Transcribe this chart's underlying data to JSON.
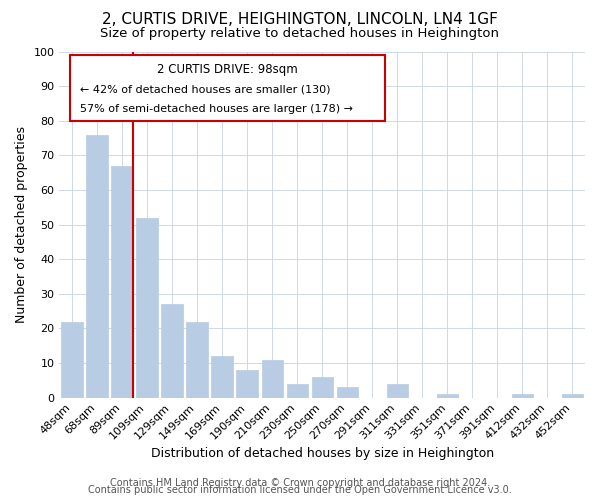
{
  "title": "2, CURTIS DRIVE, HEIGHINGTON, LINCOLN, LN4 1GF",
  "subtitle": "Size of property relative to detached houses in Heighington",
  "xlabel": "Distribution of detached houses by size in Heighington",
  "ylabel": "Number of detached properties",
  "bar_labels": [
    "48sqm",
    "68sqm",
    "89sqm",
    "109sqm",
    "129sqm",
    "149sqm",
    "169sqm",
    "190sqm",
    "210sqm",
    "230sqm",
    "250sqm",
    "270sqm",
    "291sqm",
    "311sqm",
    "331sqm",
    "351sqm",
    "371sqm",
    "391sqm",
    "412sqm",
    "432sqm",
    "452sqm"
  ],
  "bar_values": [
    22,
    76,
    67,
    52,
    27,
    22,
    12,
    8,
    11,
    4,
    6,
    3,
    0,
    4,
    0,
    1,
    0,
    0,
    1,
    0,
    1
  ],
  "bar_color": "#b8cce4",
  "bar_edge_color": "#b8cce4",
  "ylim": [
    0,
    100
  ],
  "yticks": [
    0,
    10,
    20,
    30,
    40,
    50,
    60,
    70,
    80,
    90,
    100
  ],
  "vline_color": "#cc0000",
  "annotation_title": "2 CURTIS DRIVE: 98sqm",
  "annotation_line1": "← 42% of detached houses are smaller (130)",
  "annotation_line2": "57% of semi-detached houses are larger (178) →",
  "annotation_box_color": "#ffffff",
  "annotation_box_edge": "#cc0000",
  "footer1": "Contains HM Land Registry data © Crown copyright and database right 2024.",
  "footer2": "Contains public sector information licensed under the Open Government Licence v3.0.",
  "background_color": "#ffffff",
  "grid_color": "#d0d8e8",
  "title_fontsize": 11,
  "subtitle_fontsize": 9.5,
  "axis_label_fontsize": 9,
  "tick_fontsize": 8,
  "footer_fontsize": 7
}
